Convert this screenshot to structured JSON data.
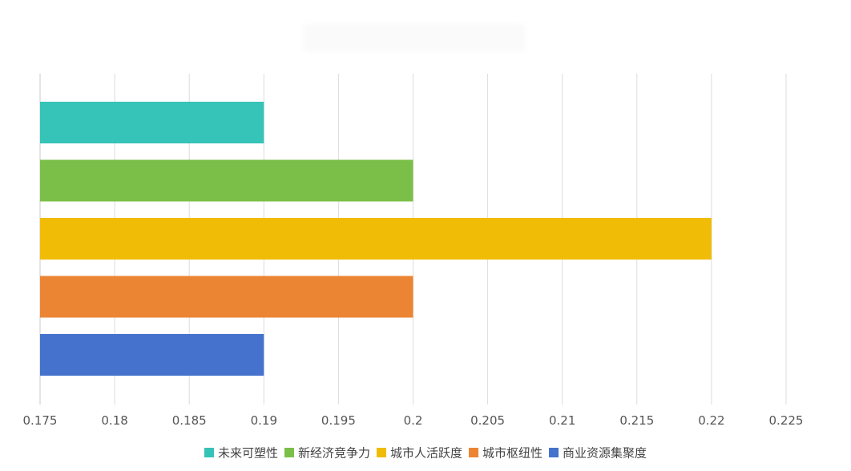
{
  "chart_data": {
    "type": "bar",
    "orientation": "horizontal",
    "title": "",
    "xlabel": "",
    "ylabel": "",
    "xlim": [
      0.175,
      0.225
    ],
    "x_ticks": [
      0.175,
      0.18,
      0.185,
      0.19,
      0.195,
      0.2,
      0.205,
      0.21,
      0.215,
      0.22,
      0.225
    ],
    "tick_labels": [
      "0.175",
      "0.18",
      "0.185",
      "0.19",
      "0.195",
      "0.2",
      "0.205",
      "0.21",
      "0.215",
      "0.22",
      "0.225"
    ],
    "grid": true,
    "legend_position": "bottom",
    "series": [
      {
        "name": "未来可塑性",
        "value": 0.19,
        "color": "#36C3B8"
      },
      {
        "name": "新经济竞争力",
        "value": 0.2,
        "color": "#7BBF48"
      },
      {
        "name": "城市人活跃度",
        "value": 0.22,
        "color": "#F0BC06"
      },
      {
        "name": "城市枢纽性",
        "value": 0.2,
        "color": "#EC8533"
      },
      {
        "name": "商业资源集聚度",
        "value": 0.19,
        "color": "#4472CC"
      }
    ]
  }
}
